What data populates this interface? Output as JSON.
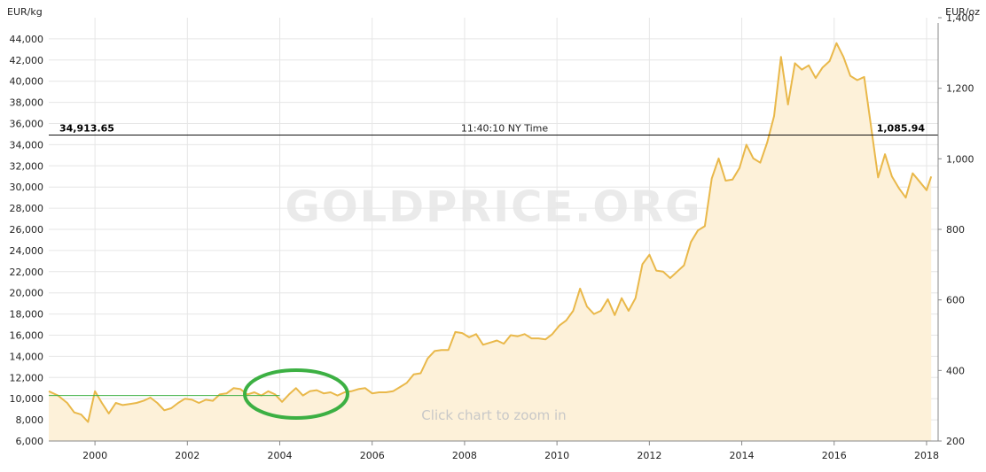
{
  "chart_data": {
    "type": "area",
    "left_axis_unit": "EUR/kg",
    "right_axis_unit": "EUR/oz",
    "x_ticks": [
      "2000",
      "2002",
      "2004",
      "2006",
      "2008",
      "2010",
      "2012",
      "2014",
      "2016",
      "2018"
    ],
    "y_ticks_left": [
      "6,000",
      "8,000",
      "10,000",
      "12,000",
      "14,000",
      "16,000",
      "18,000",
      "20,000",
      "22,000",
      "24,000",
      "26,000",
      "28,000",
      "30,000",
      "32,000",
      "34,000",
      "36,000",
      "38,000",
      "40,000",
      "42,000",
      "44,000"
    ],
    "y_ticks_right": [
      "200",
      "400",
      "600",
      "800",
      "1,000",
      "1,200",
      "1,400"
    ],
    "ylim_left": [
      6000,
      46000
    ],
    "ylim_right": [
      200,
      1400
    ],
    "xlim": [
      1999,
      2018.25
    ],
    "current_value_left": "34,913.65",
    "current_value_right": "1,085.94",
    "current_level": 34913.65,
    "time_label": "11:40:10 NY Time",
    "watermark": "GOLDPRICE.ORG",
    "zoom_hint": "Click chart to zoom in",
    "reference_level": 10300,
    "grid": true,
    "line_color": "#e9b84a",
    "fill_color": "#fdf1d9",
    "highlight_color": "#3cb043",
    "series": [
      {
        "values": [
          [
            1999.0,
            10700
          ],
          [
            1999.2,
            10300
          ],
          [
            1999.4,
            9600
          ],
          [
            1999.55,
            8700
          ],
          [
            1999.7,
            8500
          ],
          [
            1999.85,
            7800
          ],
          [
            2000.0,
            10700
          ],
          [
            2000.15,
            9600
          ],
          [
            2000.3,
            8600
          ],
          [
            2000.45,
            9600
          ],
          [
            2000.6,
            9400
          ],
          [
            2000.75,
            9500
          ],
          [
            2000.9,
            9600
          ],
          [
            2001.05,
            9800
          ],
          [
            2001.2,
            10100
          ],
          [
            2001.35,
            9600
          ],
          [
            2001.5,
            8900
          ],
          [
            2001.65,
            9100
          ],
          [
            2001.8,
            9600
          ],
          [
            2001.95,
            10000
          ],
          [
            2002.1,
            9900
          ],
          [
            2002.25,
            9600
          ],
          [
            2002.4,
            9900
          ],
          [
            2002.55,
            9800
          ],
          [
            2002.7,
            10400
          ],
          [
            2002.85,
            10500
          ],
          [
            2003.0,
            11000
          ],
          [
            2003.15,
            10900
          ],
          [
            2003.3,
            10400
          ],
          [
            2003.45,
            10600
          ],
          [
            2003.6,
            10300
          ],
          [
            2003.75,
            10700
          ],
          [
            2003.9,
            10400
          ],
          [
            2004.05,
            9700
          ],
          [
            2004.2,
            10400
          ],
          [
            2004.35,
            11000
          ],
          [
            2004.5,
            10300
          ],
          [
            2004.65,
            10700
          ],
          [
            2004.8,
            10800
          ],
          [
            2004.95,
            10500
          ],
          [
            2005.1,
            10600
          ],
          [
            2005.25,
            10300
          ],
          [
            2005.4,
            10600
          ],
          [
            2005.55,
            10700
          ],
          [
            2005.7,
            10900
          ],
          [
            2005.85,
            11000
          ],
          [
            2006.0,
            10500
          ],
          [
            2006.15,
            10600
          ],
          [
            2006.3,
            10600
          ],
          [
            2006.45,
            10700
          ],
          [
            2006.6,
            11100
          ],
          [
            2006.75,
            11500
          ],
          [
            2006.9,
            12300
          ],
          [
            2007.05,
            12400
          ],
          [
            2007.2,
            13800
          ],
          [
            2007.35,
            14500
          ],
          [
            2007.5,
            14600
          ],
          [
            2007.65,
            14600
          ],
          [
            2007.8,
            16300
          ],
          [
            2007.95,
            16200
          ],
          [
            2008.1,
            15800
          ],
          [
            2008.25,
            16100
          ],
          [
            2008.4,
            15100
          ],
          [
            2008.55,
            15300
          ],
          [
            2008.7,
            15500
          ],
          [
            2008.85,
            15200
          ],
          [
            2009.0,
            16000
          ],
          [
            2009.15,
            15900
          ],
          [
            2009.3,
            16100
          ],
          [
            2009.45,
            15700
          ],
          [
            2009.6,
            15700
          ],
          [
            2009.75,
            15600
          ],
          [
            2009.9,
            16100
          ],
          [
            2010.05,
            16900
          ],
          [
            2010.2,
            17400
          ],
          [
            2010.35,
            18300
          ],
          [
            2010.5,
            20400
          ],
          [
            2010.65,
            18700
          ],
          [
            2010.8,
            18000
          ],
          [
            2010.95,
            18300
          ],
          [
            2011.1,
            19400
          ],
          [
            2011.25,
            17900
          ],
          [
            2011.4,
            19500
          ],
          [
            2011.55,
            18300
          ],
          [
            2011.7,
            19500
          ],
          [
            2011.85,
            22700
          ],
          [
            2012.0,
            23600
          ],
          [
            2012.15,
            22100
          ],
          [
            2012.3,
            22000
          ],
          [
            2012.45,
            21400
          ],
          [
            2012.6,
            22000
          ],
          [
            2012.75,
            22600
          ],
          [
            2012.9,
            24800
          ],
          [
            2013.05,
            25900
          ],
          [
            2013.2,
            26300
          ],
          [
            2013.35,
            30800
          ],
          [
            2013.5,
            32700
          ],
          [
            2013.65,
            30600
          ],
          [
            2013.8,
            30700
          ],
          [
            2013.95,
            31800
          ],
          [
            2014.1,
            34000
          ],
          [
            2014.25,
            32700
          ],
          [
            2014.4,
            32300
          ],
          [
            2014.55,
            34200
          ],
          [
            2014.7,
            36700
          ],
          [
            2014.85,
            42300
          ],
          [
            2015.0,
            37800
          ],
          [
            2015.15,
            41700
          ],
          [
            2015.3,
            41100
          ],
          [
            2015.45,
            41500
          ],
          [
            2015.6,
            40300
          ],
          [
            2015.75,
            41300
          ],
          [
            2015.9,
            41900
          ],
          [
            2016.05,
            43600
          ],
          [
            2016.2,
            42300
          ],
          [
            2016.35,
            40500
          ],
          [
            2016.5,
            40100
          ],
          [
            2016.65,
            40400
          ],
          [
            2016.8,
            35700
          ],
          [
            2016.95,
            30900
          ],
          [
            2017.1,
            33100
          ],
          [
            2017.25,
            31000
          ],
          [
            2017.4,
            29900
          ],
          [
            2017.55,
            29000
          ],
          [
            2017.7,
            31300
          ],
          [
            2017.85,
            30500
          ],
          [
            2018.0,
            29700
          ],
          [
            2018.1,
            31000
          ]
        ]
      }
    ]
  }
}
